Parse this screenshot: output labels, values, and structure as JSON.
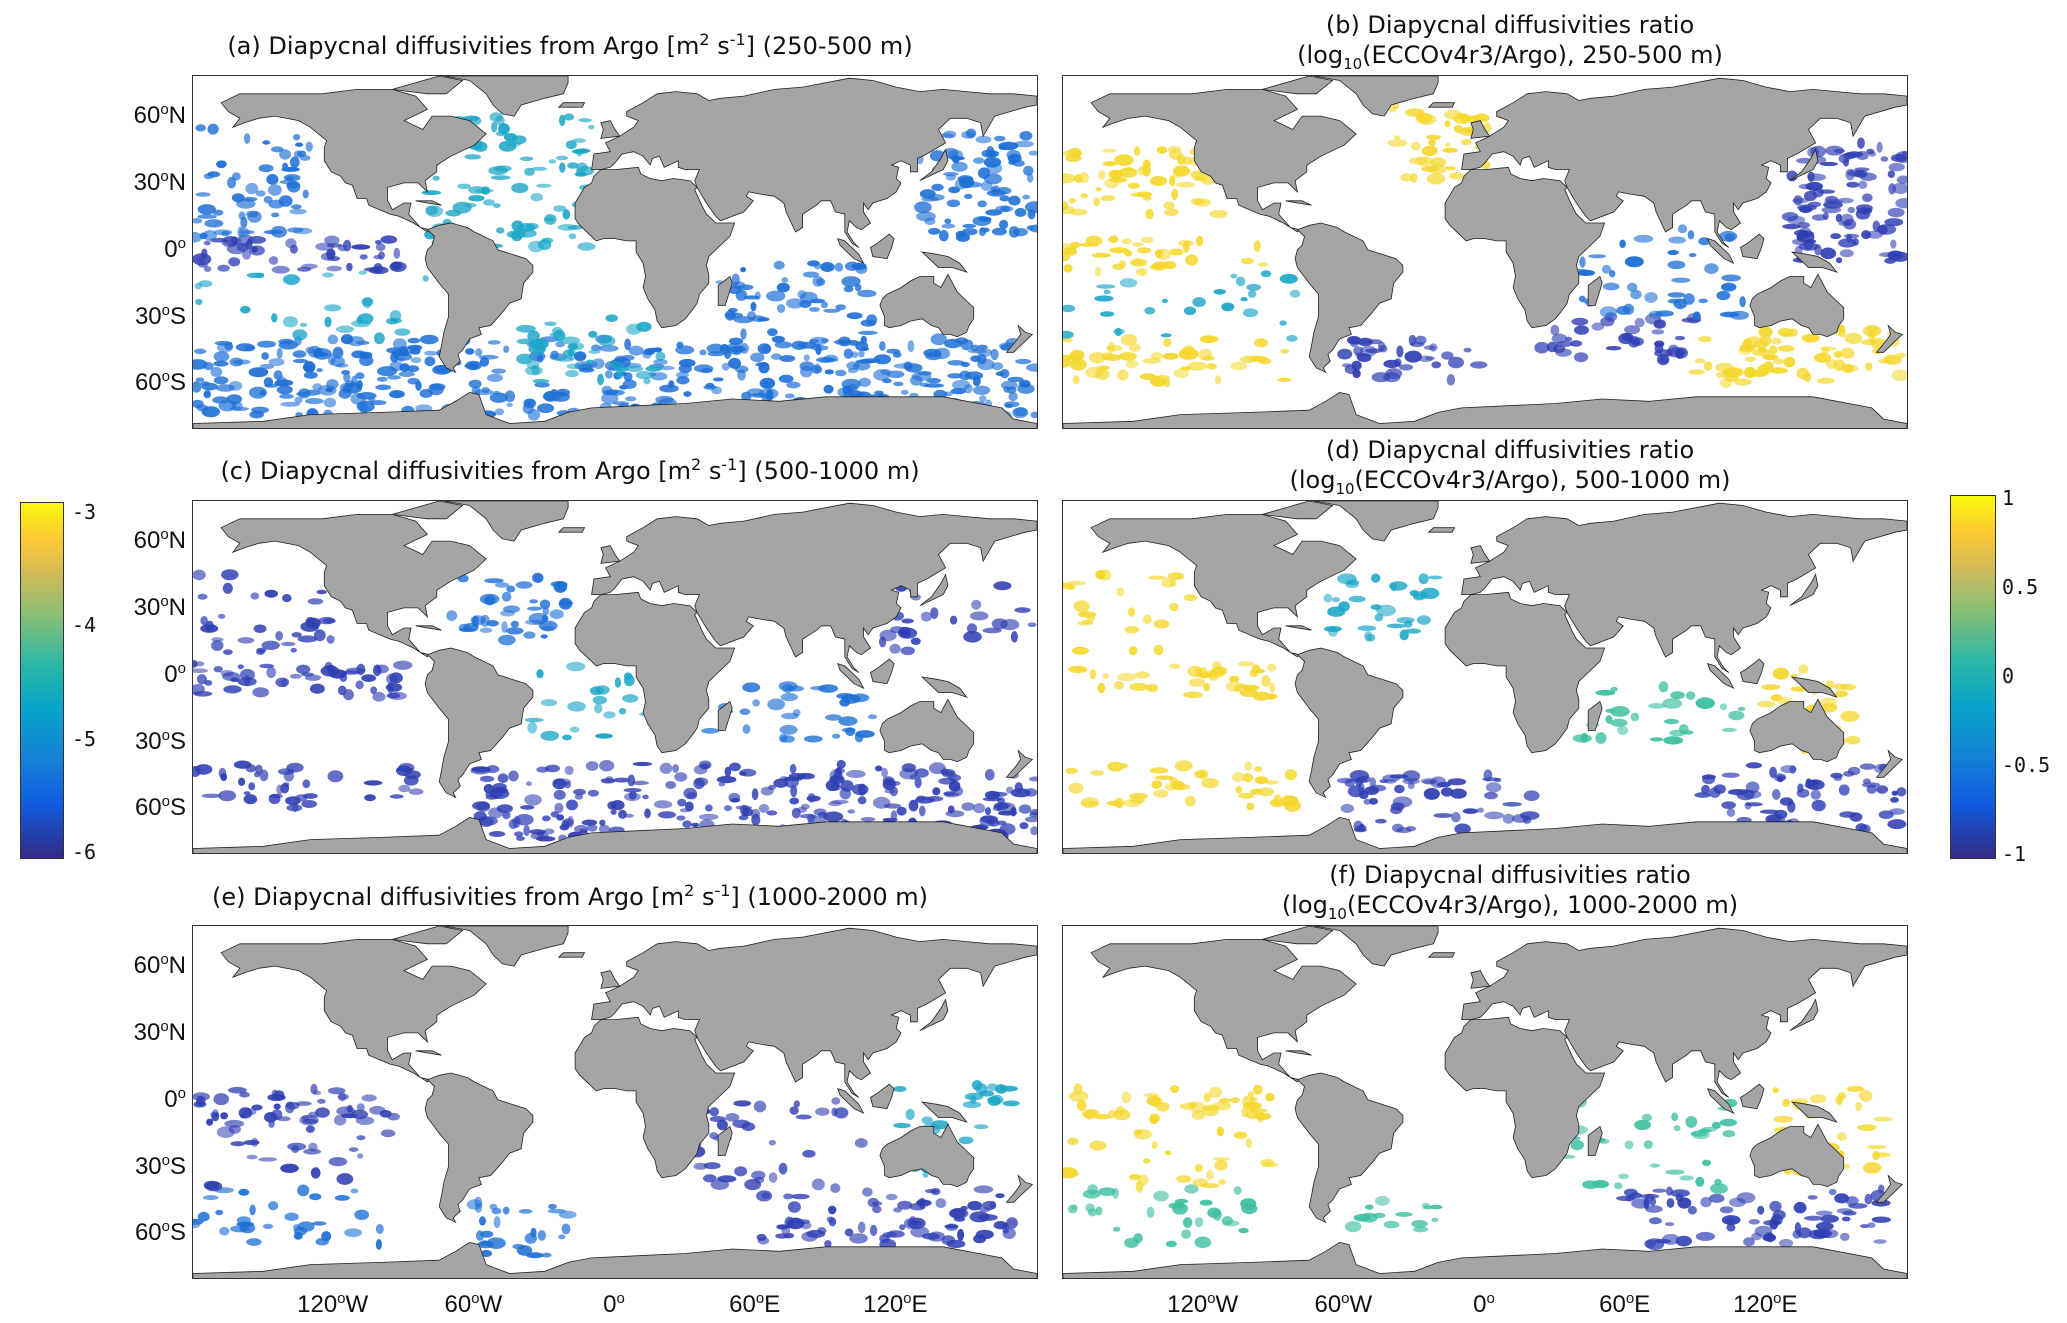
{
  "panels": [
    {
      "id": "a",
      "title_pre": "(a) Diapycnal diffusivities from Argo [m",
      "title_sup1": "2",
      "title_mid": " s",
      "title_sup2": "-1",
      "title_post": "] (250-500 m)"
    },
    {
      "id": "b",
      "title_line1": "(b) Diapycnal diffusivities ratio",
      "title_l2_pre": "(log",
      "title_l2_sub": "10",
      "title_l2_post": "(ECCOv4r3/Argo), 250-500 m)"
    },
    {
      "id": "c",
      "title_pre": "(c) Diapycnal diffusivities from Argo [m",
      "title_sup1": "2",
      "title_mid": " s",
      "title_sup2": "-1",
      "title_post": "] (500-1000 m)"
    },
    {
      "id": "d",
      "title_line1": "(d) Diapycnal diffusivities ratio",
      "title_l2_pre": "(log",
      "title_l2_sub": "10",
      "title_l2_post": "(ECCOv4r3/Argo), 500-1000 m)"
    },
    {
      "id": "e",
      "title_pre": "(e) Diapycnal diffusivities from Argo [m",
      "title_sup1": "2",
      "title_mid": " s",
      "title_sup2": "-1",
      "title_post": "] (1000-2000 m)"
    },
    {
      "id": "f",
      "title_line1": "(f) Diapycnal diffusivities ratio",
      "title_l2_pre": "(log",
      "title_l2_sub": "10",
      "title_l2_post": "(ECCOv4r3/Argo), 1000-2000 m)"
    }
  ],
  "lat_labels": [
    {
      "num": "60",
      "deg": "o",
      "hem": "N"
    },
    {
      "num": "30",
      "deg": "o",
      "hem": "N"
    },
    {
      "num": "0",
      "deg": "o",
      "hem": ""
    },
    {
      "num": "30",
      "deg": "o",
      "hem": "S"
    },
    {
      "num": "60",
      "deg": "o",
      "hem": "S"
    }
  ],
  "lon_labels": [
    {
      "num": "120",
      "deg": "o",
      "hem": "W"
    },
    {
      "num": "60",
      "deg": "o",
      "hem": "W"
    },
    {
      "num": "0",
      "deg": "o",
      "hem": ""
    },
    {
      "num": "60",
      "deg": "o",
      "hem": "E"
    },
    {
      "num": "120",
      "deg": "o",
      "hem": "E"
    }
  ],
  "colorbar_left": {
    "ticks": [
      "-3",
      "-4",
      "-5",
      "-6"
    ],
    "range": [
      -6,
      -3
    ]
  },
  "colorbar_right": {
    "ticks": [
      "1",
      "0.5",
      "0",
      "-0.5",
      "-1"
    ],
    "range": [
      -1,
      1
    ]
  },
  "colors": {
    "land": "#a5a5a5",
    "parula_low": "#352a87",
    "parula_mid": "#21b1bb",
    "parula_high": "#f9fb0e"
  }
}
